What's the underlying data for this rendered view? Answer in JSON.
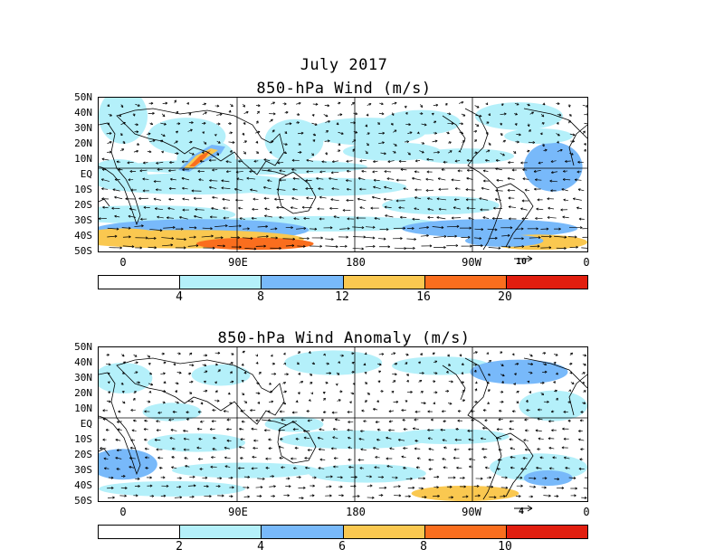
{
  "header": {
    "title": "July 2017"
  },
  "panel1": {
    "title": "850-hPa Wind (m/s)",
    "ref_vector": "10",
    "colorbar": {
      "colors": [
        "#ffffff",
        "#b4f0fa",
        "#78b9fa",
        "#fac850",
        "#fa6e1e",
        "#e11e0f"
      ],
      "labels": [
        "4",
        "8",
        "12",
        "16",
        "20"
      ]
    }
  },
  "panel2": {
    "title": "850-hPa Wind Anomaly (m/s)",
    "ref_vector": "4",
    "colorbar": {
      "colors": [
        "#ffffff",
        "#b4f0fa",
        "#78b9fa",
        "#fac850",
        "#fa6e1e",
        "#e11e0f"
      ],
      "labels": [
        "2",
        "4",
        "6",
        "8",
        "10"
      ]
    }
  },
  "lat_labels": [
    "50N",
    "40N",
    "30N",
    "20N",
    "10N",
    "EQ",
    "10S",
    "20S",
    "30S",
    "40S",
    "50S"
  ],
  "lon_labels": [
    "0",
    "90E",
    "180",
    "90W",
    "0"
  ]
}
